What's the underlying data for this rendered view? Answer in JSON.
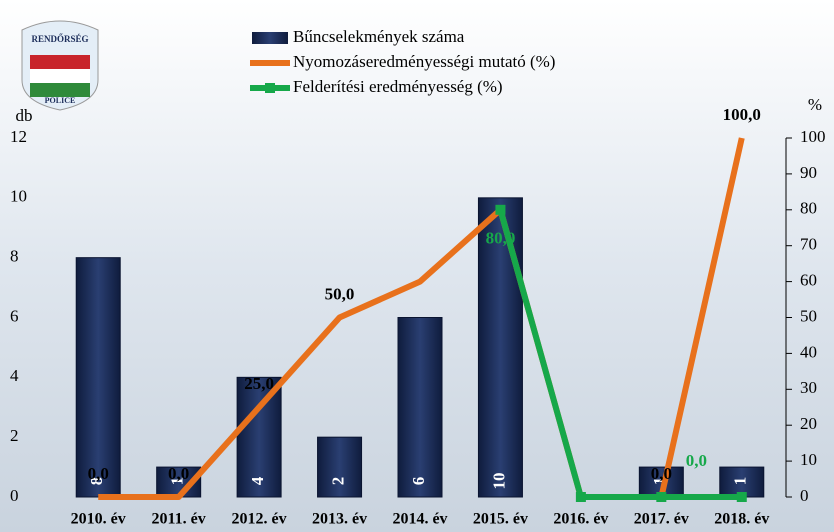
{
  "chart_data": {
    "type": "bar-line",
    "logo": {
      "top": "RENDŐRSÉG",
      "bottom": "POLICE"
    },
    "y_label": "db",
    "y2_label": "%",
    "categories": [
      "2010. év",
      "2011. év",
      "2012. év",
      "2013. év",
      "2014. év",
      "2015. év",
      "2016. év",
      "2017. év",
      "2018. év"
    ],
    "series": [
      {
        "name": "Bűncselekmények száma",
        "type": "bar",
        "color": "#1c2d5a",
        "values": [
          8,
          1,
          4,
          2,
          6,
          10,
          0,
          1,
          1
        ],
        "value_labels": [
          "8",
          "1",
          "4",
          "2",
          "6",
          "10",
          null,
          "1",
          "1"
        ]
      },
      {
        "name": "Nyomozáseredményességi mutató (%)",
        "type": "line",
        "axis": "y2",
        "color": "#e8711c",
        "values": [
          0,
          0,
          25,
          50,
          60,
          80,
          0,
          0,
          100
        ],
        "value_labels": [
          "0,0",
          "0,0",
          "25,0",
          "50,0",
          null,
          null,
          null,
          "0,0",
          "100,0"
        ]
      },
      {
        "name": "Felderítési eredményesség (%)",
        "type": "line",
        "axis": "y2",
        "color": "#16a84a",
        "values": [
          null,
          null,
          null,
          null,
          null,
          80,
          0,
          0,
          0
        ],
        "value_labels": [
          null,
          null,
          null,
          null,
          null,
          "80,0",
          null,
          "0,0",
          null
        ]
      }
    ],
    "ylim": [
      0,
      12
    ],
    "yticks": [
      0,
      2,
      4,
      6,
      8,
      10,
      12
    ],
    "y2lim": [
      0,
      100
    ],
    "y2ticks": [
      0,
      10,
      20,
      30,
      40,
      50,
      60,
      70,
      80,
      90,
      100
    ]
  }
}
